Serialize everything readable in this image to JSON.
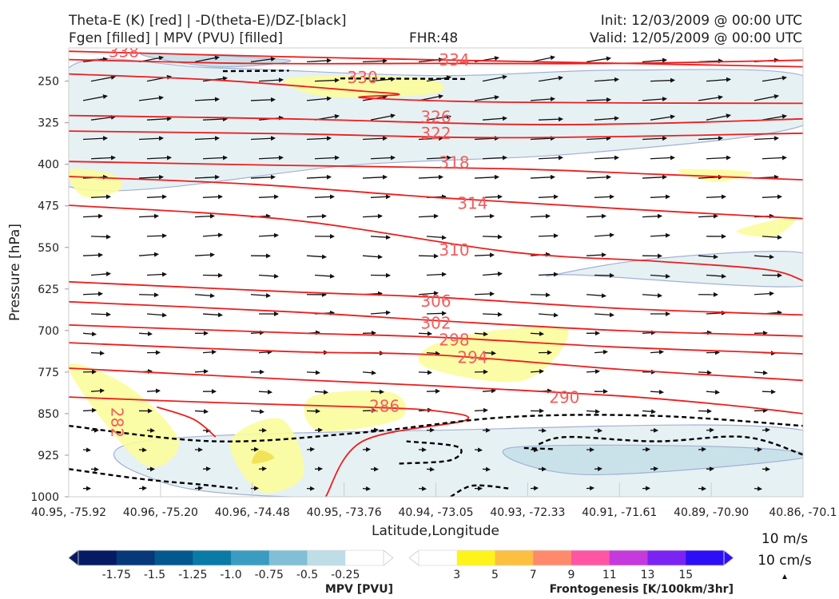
{
  "header": {
    "title_line1": "Theta-E (K) [red] | -D(theta-E)/DZ-[black]",
    "title_line2": "Fgen [filled] | MPV (PVU) [filled]",
    "fhr": "FHR:48",
    "init": "Init: 12/03/2009 @ 00:00 UTC",
    "valid": "Valid: 12/05/2009 @ 00:00 UTC"
  },
  "chart_data": {
    "type": "contour-cross-section",
    "xlabel": "Latitude,Longitude",
    "ylabel": "Pressure [hPa]",
    "x_ticks": [
      "40.95, -75.92",
      "40.96, -75.20",
      "40.96, -74.48",
      "40.95, -73.76",
      "40.94, -73.05",
      "40.93, -72.33",
      "40.91, -71.61",
      "40.89, -70.90",
      "40.86, -70.1"
    ],
    "y_ticks": [
      250,
      325,
      400,
      475,
      550,
      625,
      700,
      775,
      850,
      925,
      1000
    ],
    "ylim": [
      190,
      1000
    ],
    "y_inverted": true,
    "theta_e_contours": [
      {
        "label": "338",
        "pts": [
          [
            0,
            196
          ],
          [
            0.3,
            206
          ],
          [
            0.6,
            214
          ],
          [
            1.0,
            224
          ]
        ]
      },
      {
        "label": "334",
        "pts": [
          [
            0,
            211
          ],
          [
            0.25,
            218
          ],
          [
            0.5,
            218
          ],
          [
            0.75,
            218
          ],
          [
            1.0,
            212
          ]
        ]
      },
      {
        "label": "330",
        "pts": [
          [
            0,
            237
          ],
          [
            0.2,
            248
          ],
          [
            0.4,
            268
          ],
          [
            0.45,
            274
          ],
          [
            0.4,
            280
          ],
          [
            0.6,
            288
          ],
          [
            1.0,
            290
          ]
        ]
      },
      {
        "label": "326",
        "pts": [
          [
            0,
            312
          ],
          [
            0.3,
            318
          ],
          [
            0.6,
            328
          ],
          [
            0.8,
            326
          ],
          [
            1.0,
            318
          ]
        ]
      },
      {
        "label": "322",
        "pts": [
          [
            0,
            340
          ],
          [
            0.3,
            345
          ],
          [
            0.6,
            352
          ],
          [
            1.0,
            344
          ]
        ]
      },
      {
        "label": "318",
        "pts": [
          [
            0,
            395
          ],
          [
            0.3,
            402
          ],
          [
            0.6,
            408
          ],
          [
            0.8,
            418
          ],
          [
            1.0,
            428
          ]
        ]
      },
      {
        "label": "314",
        "pts": [
          [
            0,
            422
          ],
          [
            0.25,
            436
          ],
          [
            0.5,
            460
          ],
          [
            0.75,
            480
          ],
          [
            1.0,
            498
          ]
        ]
      },
      {
        "label": "310",
        "pts": [
          [
            0,
            474
          ],
          [
            0.3,
            500
          ],
          [
            0.6,
            558
          ],
          [
            0.8,
            575
          ],
          [
            0.95,
            590
          ],
          [
            1.0,
            610
          ]
        ]
      },
      {
        "label": "306",
        "pts": [
          [
            0,
            612
          ],
          [
            0.3,
            630
          ],
          [
            0.5,
            640
          ],
          [
            0.75,
            660
          ],
          [
            1.0,
            672
          ]
        ]
      },
      {
        "label": "302",
        "pts": [
          [
            0,
            648
          ],
          [
            0.3,
            666
          ],
          [
            0.5,
            682
          ],
          [
            0.75,
            700
          ],
          [
            1.0,
            710
          ]
        ]
      },
      {
        "label": "298",
        "pts": [
          [
            0,
            690
          ],
          [
            0.3,
            704
          ],
          [
            0.5,
            712
          ],
          [
            0.75,
            730
          ],
          [
            1.0,
            742
          ]
        ]
      },
      {
        "label": "294",
        "pts": [
          [
            0,
            722
          ],
          [
            0.3,
            738
          ],
          [
            0.5,
            744
          ],
          [
            0.75,
            770
          ],
          [
            1.0,
            790
          ]
        ]
      },
      {
        "label": "290",
        "pts": [
          [
            0,
            768
          ],
          [
            0.3,
            788
          ],
          [
            0.5,
            800
          ],
          [
            0.75,
            818
          ],
          [
            0.9,
            835
          ],
          [
            1.0,
            850
          ]
        ]
      },
      {
        "label": "286",
        "pts": [
          [
            0,
            820
          ],
          [
            0.2,
            830
          ],
          [
            0.4,
            838
          ],
          [
            0.5,
            845
          ],
          [
            0.54,
            862
          ],
          [
            0.4,
            900
          ],
          [
            0.35,
            1000
          ]
        ]
      },
      {
        "label": "282",
        "pts": [
          [
            0.12,
            838
          ],
          [
            0.17,
            860
          ],
          [
            0.2,
            892
          ]
        ]
      }
    ],
    "theta_e_labels": [
      {
        "text": "338",
        "x": 0.075,
        "p": 198
      },
      {
        "text": "334",
        "x": 0.525,
        "p": 213
      },
      {
        "text": "330",
        "x": 0.4,
        "p": 245
      },
      {
        "text": "326",
        "x": 0.5,
        "p": 316
      },
      {
        "text": "322",
        "x": 0.5,
        "p": 346
      },
      {
        "text": "318",
        "x": 0.525,
        "p": 398
      },
      {
        "text": "314",
        "x": 0.55,
        "p": 472
      },
      {
        "text": "310",
        "x": 0.525,
        "p": 556
      },
      {
        "text": "306",
        "x": 0.5,
        "p": 648
      },
      {
        "text": "302",
        "x": 0.5,
        "p": 688
      },
      {
        "text": "298",
        "x": 0.525,
        "p": 718
      },
      {
        "text": "294",
        "x": 0.55,
        "p": 750
      },
      {
        "text": "290",
        "x": 0.675,
        "p": 822
      },
      {
        "text": "286",
        "x": 0.43,
        "p": 838
      },
      {
        "text": "282",
        "x": 0.065,
        "p": 866
      }
    ],
    "dthetae_dz_contours": [
      {
        "pts": [
          [
            0.21,
            232
          ],
          [
            0.3,
            231
          ]
        ]
      },
      {
        "pts": [
          [
            0.37,
            245
          ],
          [
            0.54,
            246
          ]
        ]
      },
      {
        "pts": [
          [
            0,
            872
          ],
          [
            0.2,
            900
          ],
          [
            0.4,
            884
          ],
          [
            0.6,
            856
          ],
          [
            0.8,
            854
          ],
          [
            1.0,
            872
          ]
        ]
      },
      {
        "pts": [
          [
            0,
            950
          ],
          [
            0.1,
            968
          ],
          [
            0.18,
            978
          ],
          [
            0.23,
            985
          ]
        ]
      },
      {
        "pts": [
          [
            0.45,
            940
          ],
          [
            0.52,
            934
          ],
          [
            0.53,
            910
          ],
          [
            0.46,
            900
          ]
        ]
      },
      {
        "pts": [
          [
            0.64,
            905
          ],
          [
            0.68,
            892
          ],
          [
            0.8,
            900
          ],
          [
            0.92,
            892
          ],
          [
            1.0,
            924
          ]
        ]
      },
      {
        "pts": [
          [
            0.62,
            912
          ],
          [
            0.66,
            914
          ]
        ]
      },
      {
        "pts": [
          [
            0.52,
            1000
          ],
          [
            0.55,
            980
          ],
          [
            0.6,
            985
          ]
        ]
      }
    ],
    "mpv_filled": [
      {
        "level": "-0.25",
        "pts": [
          [
            0,
            226
          ],
          [
            0.2,
            226
          ],
          [
            0.5,
            240
          ],
          [
            0.75,
            230
          ],
          [
            1.0,
            240
          ],
          [
            1.0,
            330
          ],
          [
            0.7,
            380
          ],
          [
            0.4,
            400
          ],
          [
            0,
            440
          ]
        ]
      },
      {
        "level": "-0.25",
        "pts": [
          [
            0.66,
            600
          ],
          [
            0.8,
            570
          ],
          [
            1.0,
            560
          ],
          [
            1.0,
            620
          ],
          [
            0.7,
            600
          ]
        ]
      },
      {
        "level": "-0.25",
        "pts": [
          [
            0.1,
            900
          ],
          [
            0.5,
            880
          ],
          [
            1.0,
            880
          ],
          [
            1.0,
            1000
          ],
          [
            0.3,
            1000
          ],
          [
            0.1,
            960
          ]
        ]
      },
      {
        "level": "-0.5",
        "pts": [
          [
            0.1,
            200
          ],
          [
            0.3,
            212
          ],
          [
            0.2,
            224
          ]
        ]
      },
      {
        "level": "-0.5",
        "pts": [
          [
            0.6,
            912
          ],
          [
            0.9,
            910
          ],
          [
            1.0,
            930
          ],
          [
            0.7,
            960
          ]
        ]
      }
    ],
    "fgen_filled": [
      {
        "level": "3",
        "pts": [
          [
            0.3,
            244
          ],
          [
            0.48,
            244
          ],
          [
            0.5,
            272
          ],
          [
            0.35,
            278
          ]
        ]
      },
      {
        "level": "3",
        "pts": [
          [
            0.0,
            410
          ],
          [
            0.06,
            418
          ],
          [
            0.07,
            446
          ],
          [
            0.02,
            458
          ]
        ]
      },
      {
        "level": "3",
        "pts": [
          [
            0.83,
            410
          ],
          [
            0.93,
            414
          ],
          [
            0.88,
            432
          ]
        ]
      },
      {
        "level": "3",
        "pts": [
          [
            0.91,
            520
          ],
          [
            0.99,
            494
          ],
          [
            0.96,
            530
          ]
        ]
      },
      {
        "level": "3",
        "pts": [
          [
            0.49,
            730
          ],
          [
            0.58,
            700
          ],
          [
            0.68,
            700
          ],
          [
            0.62,
            790
          ],
          [
            0.49,
            768
          ]
        ]
      },
      {
        "level": "3",
        "pts": [
          [
            0,
            768
          ],
          [
            0.08,
            800
          ],
          [
            0.15,
            900
          ],
          [
            0.1,
            940
          ]
        ]
      },
      {
        "level": "3",
        "pts": [
          [
            0.33,
            820
          ],
          [
            0.44,
            812
          ],
          [
            0.45,
            860
          ],
          [
            0.34,
            880
          ]
        ]
      },
      {
        "level": "3",
        "pts": [
          [
            0.22,
            900
          ],
          [
            0.29,
            860
          ],
          [
            0.32,
            960
          ],
          [
            0.26,
            990
          ]
        ]
      },
      {
        "level": "5",
        "pts": [
          [
            0.26,
            916
          ],
          [
            0.28,
            930
          ],
          [
            0.25,
            940
          ]
        ]
      }
    ],
    "wind_arrows": "grid of black wind vectors, mostly westerly",
    "mpv_colorbar": {
      "label": "MPV [PVU]",
      "ticks": [
        "-1.75",
        "-1.5",
        "-1.25",
        "-1.0",
        "-0.75",
        "-0.5",
        "-0.25"
      ],
      "colors": [
        "#051a62",
        "#06387a",
        "#03588f",
        "#0a7aa6",
        "#3b9cc1",
        "#80bfd6",
        "#bedde7",
        "#ffffff"
      ]
    },
    "fgen_colorbar": {
      "label": "Frontogenesis [K/100km/3hr]",
      "ticks": [
        "3",
        "5",
        "7",
        "9",
        "11",
        "13",
        "15"
      ],
      "colors": [
        "#ffffff",
        "#fff41a",
        "#fdbf40",
        "#ff8a6b",
        "#ff55a4",
        "#c43adc",
        "#7a24f3",
        "#2c0ff7"
      ]
    },
    "wind_key": {
      "horizontal": "10 m/s",
      "vertical": "10 cm/s"
    }
  },
  "colors": {
    "theta_e": "#ee1d1d",
    "dthetae": "#000000",
    "label": "#f25d5d",
    "isobar_line": "#a3b1d4",
    "mpv_fill": "#e6f1f4",
    "mpv_fill2": "#c9e2ea",
    "fgen_fill": "#fbfc9c",
    "fgen_fill2": "#f0e050"
  }
}
